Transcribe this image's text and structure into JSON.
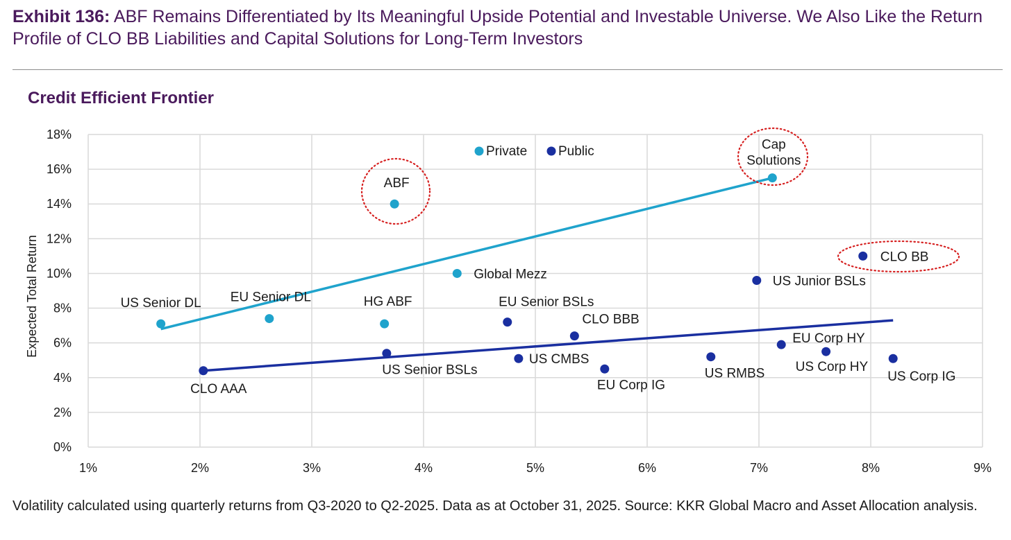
{
  "header": {
    "exhibit_label": "Exhibit 136:",
    "title_text": " ABF Remains Differentiated by Its Meaningful Upside Potential and Investable Universe. We Also Like the Return Profile of CLO BB Liabilities and Capital Solutions for Long-Term Investors"
  },
  "footnote": "Volatility calculated using quarterly returns from Q3-2020 to Q2-2025. Data as at October 31, 2025. Source: KKR Global Macro and Asset Allocation analysis.",
  "colors": {
    "private": "#1fa3cc",
    "public": "#1a2fa0",
    "highlight_circle": "#d62020",
    "title": "#4a1a5c",
    "grid": "#d9d9d9"
  },
  "chart_data": {
    "type": "scatter",
    "title": "Credit Efficient Frontier",
    "xlabel": "",
    "ylabel": "Expected Total Return",
    "xlim": [
      1,
      9
    ],
    "ylim": [
      0,
      18
    ],
    "x_ticks": [
      "1%",
      "2%",
      "3%",
      "4%",
      "5%",
      "6%",
      "7%",
      "8%",
      "9%"
    ],
    "y_ticks": [
      "0%",
      "2%",
      "4%",
      "6%",
      "8%",
      "10%",
      "12%",
      "14%",
      "16%",
      "18%"
    ],
    "grid": true,
    "legend": {
      "placement": "top-center",
      "entries": [
        "Private",
        "Public"
      ]
    },
    "series": [
      {
        "name": "Private",
        "color": "#1fa3cc",
        "points": [
          {
            "label": "US Senior DL",
            "x": 1.65,
            "y": 7.1
          },
          {
            "label": "EU Senior DL",
            "x": 2.62,
            "y": 7.4
          },
          {
            "label": "HG ABF",
            "x": 3.65,
            "y": 7.1
          },
          {
            "label": "ABF",
            "x": 3.74,
            "y": 14.0,
            "highlighted": true
          },
          {
            "label": "Global Mezz",
            "x": 4.3,
            "y": 10.0
          },
          {
            "label": "Cap Solutions",
            "x": 7.12,
            "y": 15.5,
            "highlighted": true
          }
        ],
        "trendline": {
          "x": [
            1.65,
            7.12
          ],
          "y": [
            6.8,
            15.5
          ]
        }
      },
      {
        "name": "Public",
        "color": "#1a2fa0",
        "points": [
          {
            "label": "CLO AAA",
            "x": 2.03,
            "y": 4.4
          },
          {
            "label": "US Senior BSLs",
            "x": 3.67,
            "y": 5.4
          },
          {
            "label": "EU Senior BSLs",
            "x": 4.75,
            "y": 7.2
          },
          {
            "label": "US CMBS",
            "x": 4.85,
            "y": 5.1
          },
          {
            "label": "CLO BBB",
            "x": 5.35,
            "y": 6.4
          },
          {
            "label": "EU Corp IG",
            "x": 5.62,
            "y": 4.5
          },
          {
            "label": "US RMBS",
            "x": 6.57,
            "y": 5.2
          },
          {
            "label": "US Junior BSLs",
            "x": 6.98,
            "y": 9.6
          },
          {
            "label": "EU Corp HY",
            "x": 7.2,
            "y": 5.9
          },
          {
            "label": "US Corp HY",
            "x": 7.6,
            "y": 5.5
          },
          {
            "label": "CLO BB",
            "x": 7.93,
            "y": 11.0,
            "highlighted": true
          },
          {
            "label": "US Corp IG",
            "x": 8.2,
            "y": 5.1
          }
        ],
        "trendline": {
          "x": [
            2.03,
            8.2
          ],
          "y": [
            4.4,
            7.3
          ]
        }
      }
    ]
  }
}
